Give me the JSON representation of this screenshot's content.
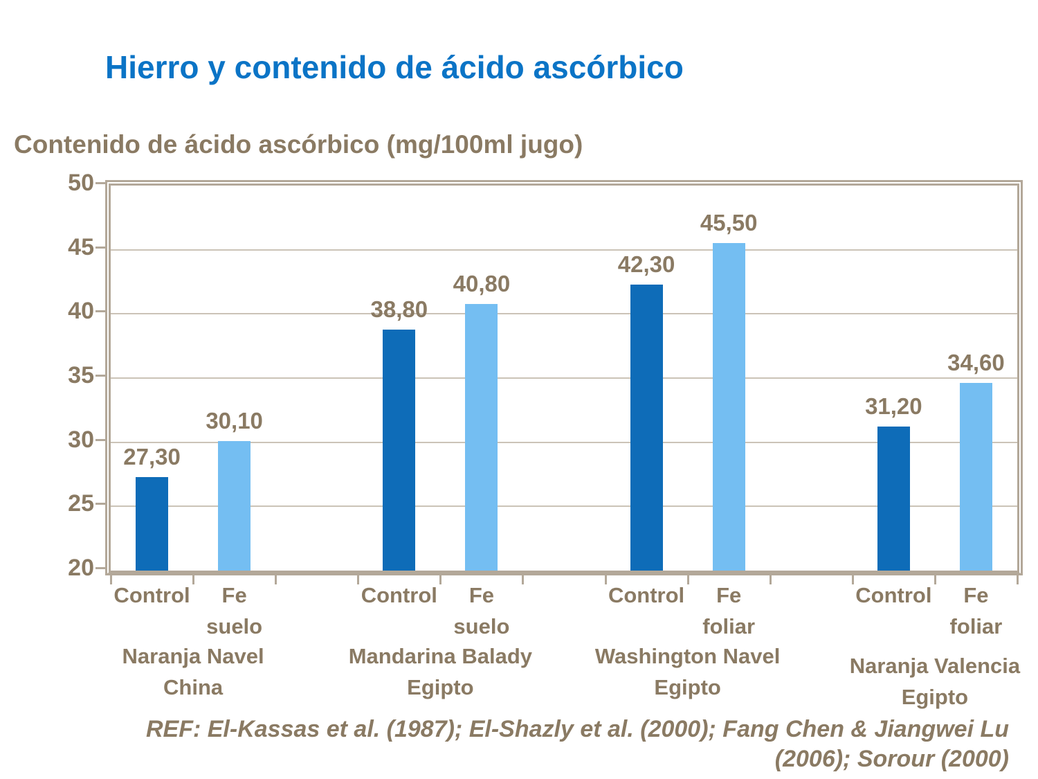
{
  "title": "Hierro y contenido de ácido ascórbico",
  "y_axis_title": "Contenido de ácido ascórbico (mg/100ml jugo)",
  "reference": {
    "line1": "REF: El-Kassas et al. (1987); El-Shazly et al. (2000); Fang Chen & Jiangwei Lu",
    "line2": "(2006); Sorour (2000)"
  },
  "colors": {
    "title_blue": "#0b74c6",
    "text_brown": "#8a7a63",
    "bar_dark_blue": "#0e6cb8",
    "bar_light_blue": "#74bef2",
    "axis_tan": "#b3a899",
    "gridline": "#cbc3b7"
  },
  "chart_data": {
    "type": "bar",
    "title": "Contenido de ácido ascórbico (mg/100ml jugo)",
    "xlabel": "",
    "ylabel": "Contenido de ácido ascórbico (mg/100ml jugo)",
    "ylim": [
      20,
      50
    ],
    "y_ticks": [
      50,
      45,
      40,
      35,
      30,
      25,
      20
    ],
    "grid": true,
    "legend_position": "none",
    "categories": [
      "Naranja Navel China",
      "Mandarina Balady Egipto",
      "Washington Navel Egipto",
      "Naranja Valencia Egipto"
    ],
    "series": [
      {
        "name": "Control",
        "values": [
          27.3,
          38.8,
          42.3,
          31.2
        ]
      },
      {
        "name": "Fe (suelo/foliar)",
        "values": [
          30.1,
          40.8,
          45.5,
          34.6
        ]
      }
    ],
    "groups": [
      {
        "name_lines": [
          "Naranja Navel",
          "China"
        ],
        "bars": [
          {
            "label_lines": [
              "Control"
            ],
            "value": 27.3,
            "value_label": "27,30",
            "color": "dark"
          },
          {
            "label_lines": [
              "Fe",
              "suelo"
            ],
            "value": 30.1,
            "value_label": "30,10",
            "color": "light"
          }
        ]
      },
      {
        "name_lines": [
          "Mandarina Balady",
          "Egipto"
        ],
        "bars": [
          {
            "label_lines": [
              "Control"
            ],
            "value": 38.8,
            "value_label": "38,80",
            "color": "dark"
          },
          {
            "label_lines": [
              "Fe",
              "suelo"
            ],
            "value": 40.8,
            "value_label": "40,80",
            "color": "light"
          }
        ]
      },
      {
        "name_lines": [
          "Washington Navel",
          "Egipto"
        ],
        "bars": [
          {
            "label_lines": [
              "Control"
            ],
            "value": 42.3,
            "value_label": "42,30",
            "color": "dark"
          },
          {
            "label_lines": [
              "Fe",
              "foliar"
            ],
            "value": 45.5,
            "value_label": "45,50",
            "color": "light"
          }
        ]
      },
      {
        "name_lines": [
          "Naranja Valencia",
          "Egipto"
        ],
        "bars": [
          {
            "label_lines": [
              "Control"
            ],
            "value": 31.2,
            "value_label": "31,20",
            "color": "dark"
          },
          {
            "label_lines": [
              "Fe",
              "foliar"
            ],
            "value": 34.6,
            "value_label": "34,60",
            "color": "light"
          }
        ]
      }
    ]
  }
}
